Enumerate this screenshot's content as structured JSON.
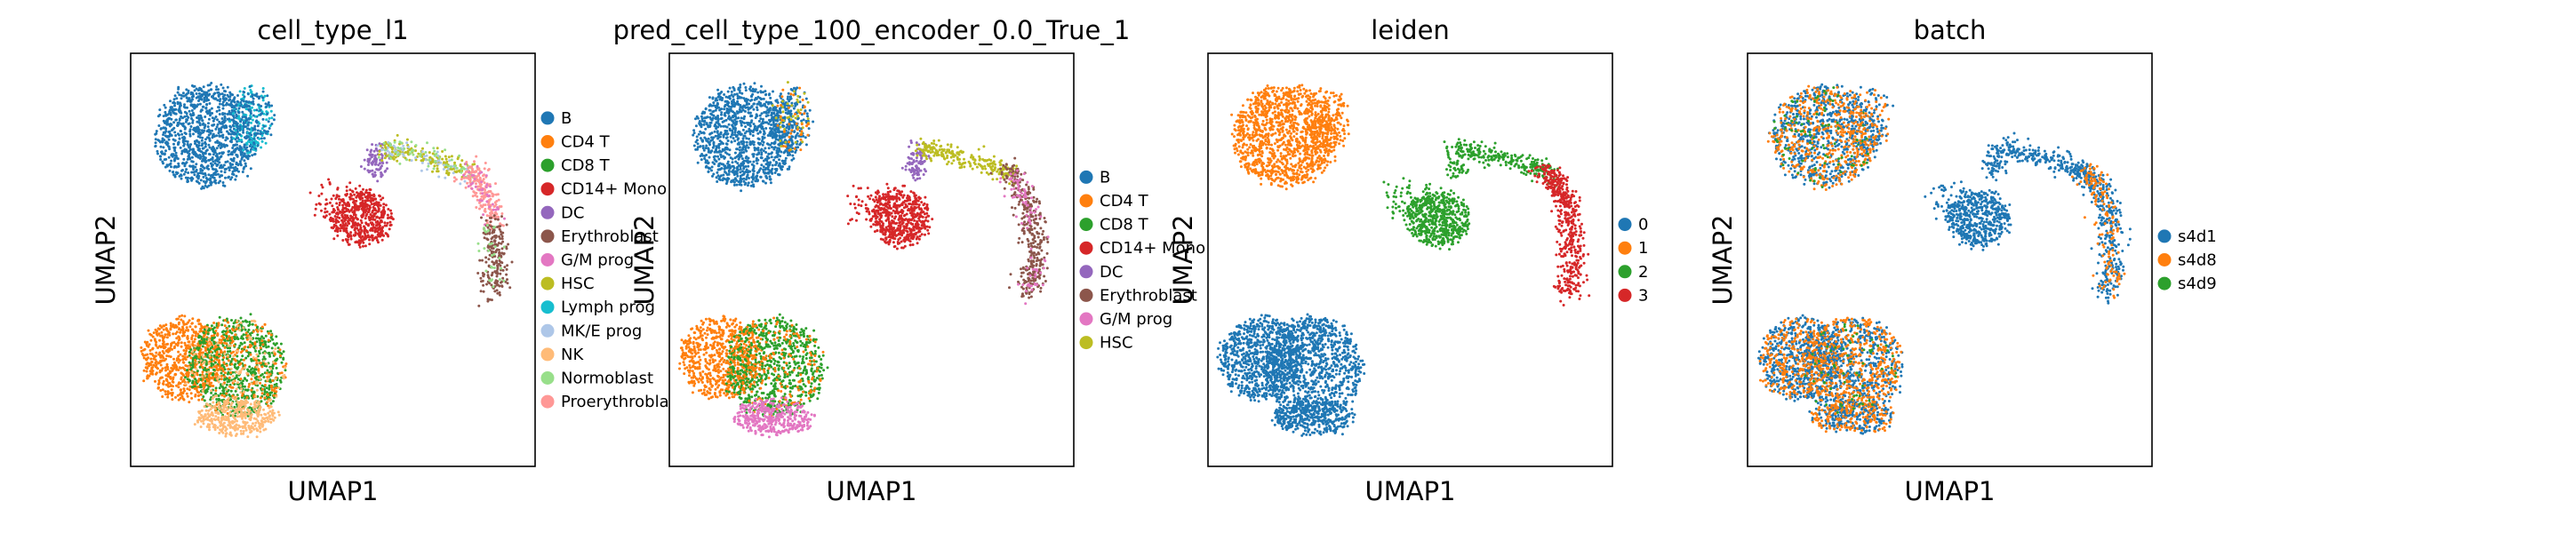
{
  "chart_data": [
    {
      "type": "scatter",
      "title": "cell_type_l1",
      "xlabel": "UMAP1",
      "ylabel": "UMAP2",
      "legend_position": "right",
      "categories": [
        {
          "name": "B",
          "color": "#1f77b4"
        },
        {
          "name": "CD4 T",
          "color": "#ff7f0e"
        },
        {
          "name": "CD8 T",
          "color": "#2ca02c"
        },
        {
          "name": "CD14+ Mono",
          "color": "#d62728"
        },
        {
          "name": "DC",
          "color": "#9467bd"
        },
        {
          "name": "Erythroblast",
          "color": "#8c564b"
        },
        {
          "name": "G/M prog",
          "color": "#e377c2"
        },
        {
          "name": "HSC",
          "color": "#bcbd22"
        },
        {
          "name": "Lymph prog",
          "color": "#17becf"
        },
        {
          "name": "MK/E prog",
          "color": "#aec7e8"
        },
        {
          "name": "NK",
          "color": "#ffbb78"
        },
        {
          "name": "Normoblast",
          "color": "#98df8a"
        },
        {
          "name": "Proerythroblast",
          "color": "#ff9896"
        }
      ]
    },
    {
      "type": "scatter",
      "title": "pred_cell_type_100_encoder_0.0_True_1",
      "xlabel": "UMAP1",
      "ylabel": "UMAP2",
      "legend_position": "right",
      "categories": [
        {
          "name": "B",
          "color": "#1f77b4"
        },
        {
          "name": "CD4 T",
          "color": "#ff7f0e"
        },
        {
          "name": "CD8 T",
          "color": "#2ca02c"
        },
        {
          "name": "CD14+ Mono",
          "color": "#d62728"
        },
        {
          "name": "DC",
          "color": "#9467bd"
        },
        {
          "name": "Erythroblast",
          "color": "#8c564b"
        },
        {
          "name": "G/M prog",
          "color": "#e377c2"
        },
        {
          "name": "HSC",
          "color": "#bcbd22"
        }
      ]
    },
    {
      "type": "scatter",
      "title": "leiden",
      "xlabel": "UMAP1",
      "ylabel": "UMAP2",
      "legend_position": "right",
      "categories": [
        {
          "name": "0",
          "color": "#1f77b4"
        },
        {
          "name": "1",
          "color": "#ff7f0e"
        },
        {
          "name": "2",
          "color": "#2ca02c"
        },
        {
          "name": "3",
          "color": "#d62728"
        }
      ]
    },
    {
      "type": "scatter",
      "title": "batch",
      "xlabel": "UMAP1",
      "ylabel": "UMAP2",
      "legend_position": "right",
      "categories": [
        {
          "name": "s4d1",
          "color": "#1f77b4"
        },
        {
          "name": "s4d8",
          "color": "#ff7f0e"
        },
        {
          "name": "s4d9",
          "color": "#2ca02c"
        }
      ]
    }
  ]
}
